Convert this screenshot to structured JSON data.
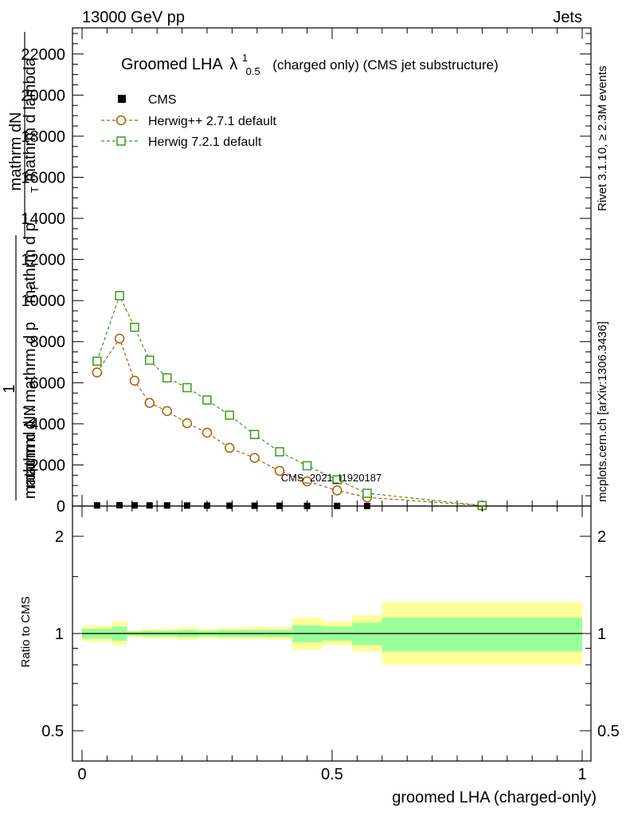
{
  "header": {
    "energy_label": "13000 GeV pp",
    "process_label": "Jets"
  },
  "side_labels": {
    "rivet": "Rivet 3.1.10, ≥ 2.3M events",
    "mcplots": "mcplots.cern.ch [arXiv:1306.3436]"
  },
  "watermark": "CMS_2021_I1920187",
  "colors": {
    "cms": "#000000",
    "herwigpp": "#b35a00",
    "herwig7": "#3a9a16",
    "band_inner": "#99ff99",
    "band_outer": "#ffff99"
  },
  "chart_data": [
    {
      "type": "line",
      "title_main": "Groomed LHA",
      "title_lambda": "λ",
      "title_sup": "1",
      "title_sub": "0.5",
      "title_rest": "(charged only) (CMS jet substructure)",
      "ylabel_numerator": "1",
      "ylabel_overline_text": "mathrm dN",
      "ylabel_denominator": "mathrm d N / mathrm d p",
      "ylabel_mid": "mathrm d p",
      "ylabel_pt": "T",
      "ylabel_extra": "mathrm d lambda",
      "ylabel_overlap": "mathrm d N",
      "ylim": [
        0,
        23000
      ],
      "y_ticks": [
        0,
        2000,
        4000,
        6000,
        8000,
        10000,
        12000,
        14000,
        16000,
        18000,
        20000,
        22000
      ],
      "y_tick_labels": [
        "0",
        "2000",
        "4000",
        "6000",
        "8000",
        "10000",
        "12000",
        "14000",
        "16000",
        "18000",
        "20000",
        "22000"
      ],
      "xlim": [
        0,
        1
      ],
      "legend_position": "top-left",
      "series": [
        {
          "name": "CMS",
          "marker": "filled-square",
          "x": [
            0.03,
            0.075,
            0.105,
            0.135,
            0.17,
            0.21,
            0.25,
            0.295,
            0.345,
            0.395,
            0.45,
            0.51,
            0.57,
            0.8
          ],
          "values": [
            30,
            38,
            32,
            30,
            28,
            25,
            22,
            18,
            14,
            10,
            7,
            4,
            2,
            0.5
          ]
        },
        {
          "name": "Herwig++ 2.7.1 default",
          "marker": "open-circle",
          "x": [
            0.03,
            0.075,
            0.105,
            0.135,
            0.17,
            0.21,
            0.25,
            0.295,
            0.345,
            0.395,
            0.45,
            0.51,
            0.57,
            0.8
          ],
          "values": [
            6500,
            8150,
            6100,
            5020,
            4620,
            4030,
            3570,
            2830,
            2340,
            1710,
            1200,
            760,
            420,
            20
          ]
        },
        {
          "name": "Herwig 7.2.1 default",
          "marker": "open-square",
          "x": [
            0.03,
            0.075,
            0.105,
            0.135,
            0.17,
            0.21,
            0.25,
            0.295,
            0.345,
            0.395,
            0.45,
            0.51,
            0.57,
            0.8
          ],
          "values": [
            7050,
            10240,
            8700,
            7100,
            6240,
            5760,
            5160,
            4420,
            3480,
            2640,
            1960,
            1280,
            620,
            25
          ]
        }
      ]
    },
    {
      "type": "area",
      "ylabel": "Ratio to CMS",
      "xlabel": "groomed LHA (charged-only)",
      "xlim": [
        0,
        1
      ],
      "ylim": [
        0.4,
        2.4
      ],
      "log_y": true,
      "y_ticks": [
        0.5,
        1,
        2
      ],
      "y_tick_labels": [
        "0.5",
        "1",
        "2"
      ],
      "x_ticks": [
        0,
        0.5,
        1
      ],
      "x_tick_labels": [
        "0",
        "0.5",
        "1"
      ],
      "bins": [
        {
          "lo": 0.0,
          "hi": 0.06,
          "inner": [
            0.965,
            1.035
          ],
          "outer": [
            0.945,
            1.06
          ]
        },
        {
          "lo": 0.06,
          "hi": 0.09,
          "inner": [
            0.95,
            1.05
          ],
          "outer": [
            0.92,
            1.09
          ]
        },
        {
          "lo": 0.09,
          "hi": 0.12,
          "inner": [
            0.985,
            1.015
          ],
          "outer": [
            0.975,
            1.025
          ]
        },
        {
          "lo": 0.12,
          "hi": 0.15,
          "inner": [
            0.98,
            1.02
          ],
          "outer": [
            0.965,
            1.035
          ]
        },
        {
          "lo": 0.15,
          "hi": 0.19,
          "inner": [
            0.98,
            1.02
          ],
          "outer": [
            0.965,
            1.035
          ]
        },
        {
          "lo": 0.19,
          "hi": 0.23,
          "inner": [
            0.975,
            1.025
          ],
          "outer": [
            0.955,
            1.045
          ]
        },
        {
          "lo": 0.23,
          "hi": 0.27,
          "inner": [
            0.98,
            1.02
          ],
          "outer": [
            0.965,
            1.035
          ]
        },
        {
          "lo": 0.27,
          "hi": 0.32,
          "inner": [
            0.975,
            1.025
          ],
          "outer": [
            0.96,
            1.04
          ]
        },
        {
          "lo": 0.32,
          "hi": 0.37,
          "inner": [
            0.975,
            1.025
          ],
          "outer": [
            0.96,
            1.045
          ]
        },
        {
          "lo": 0.37,
          "hi": 0.42,
          "inner": [
            0.975,
            1.025
          ],
          "outer": [
            0.955,
            1.045
          ]
        },
        {
          "lo": 0.42,
          "hi": 0.48,
          "inner": [
            0.94,
            1.06
          ],
          "outer": [
            0.89,
            1.12
          ]
        },
        {
          "lo": 0.48,
          "hi": 0.54,
          "inner": [
            0.95,
            1.05
          ],
          "outer": [
            0.92,
            1.09
          ]
        },
        {
          "lo": 0.54,
          "hi": 0.6,
          "inner": [
            0.92,
            1.08
          ],
          "outer": [
            0.88,
            1.14
          ]
        },
        {
          "lo": 0.6,
          "hi": 1.0,
          "inner": [
            0.88,
            1.12
          ],
          "outer": [
            0.8,
            1.25
          ]
        }
      ]
    }
  ]
}
